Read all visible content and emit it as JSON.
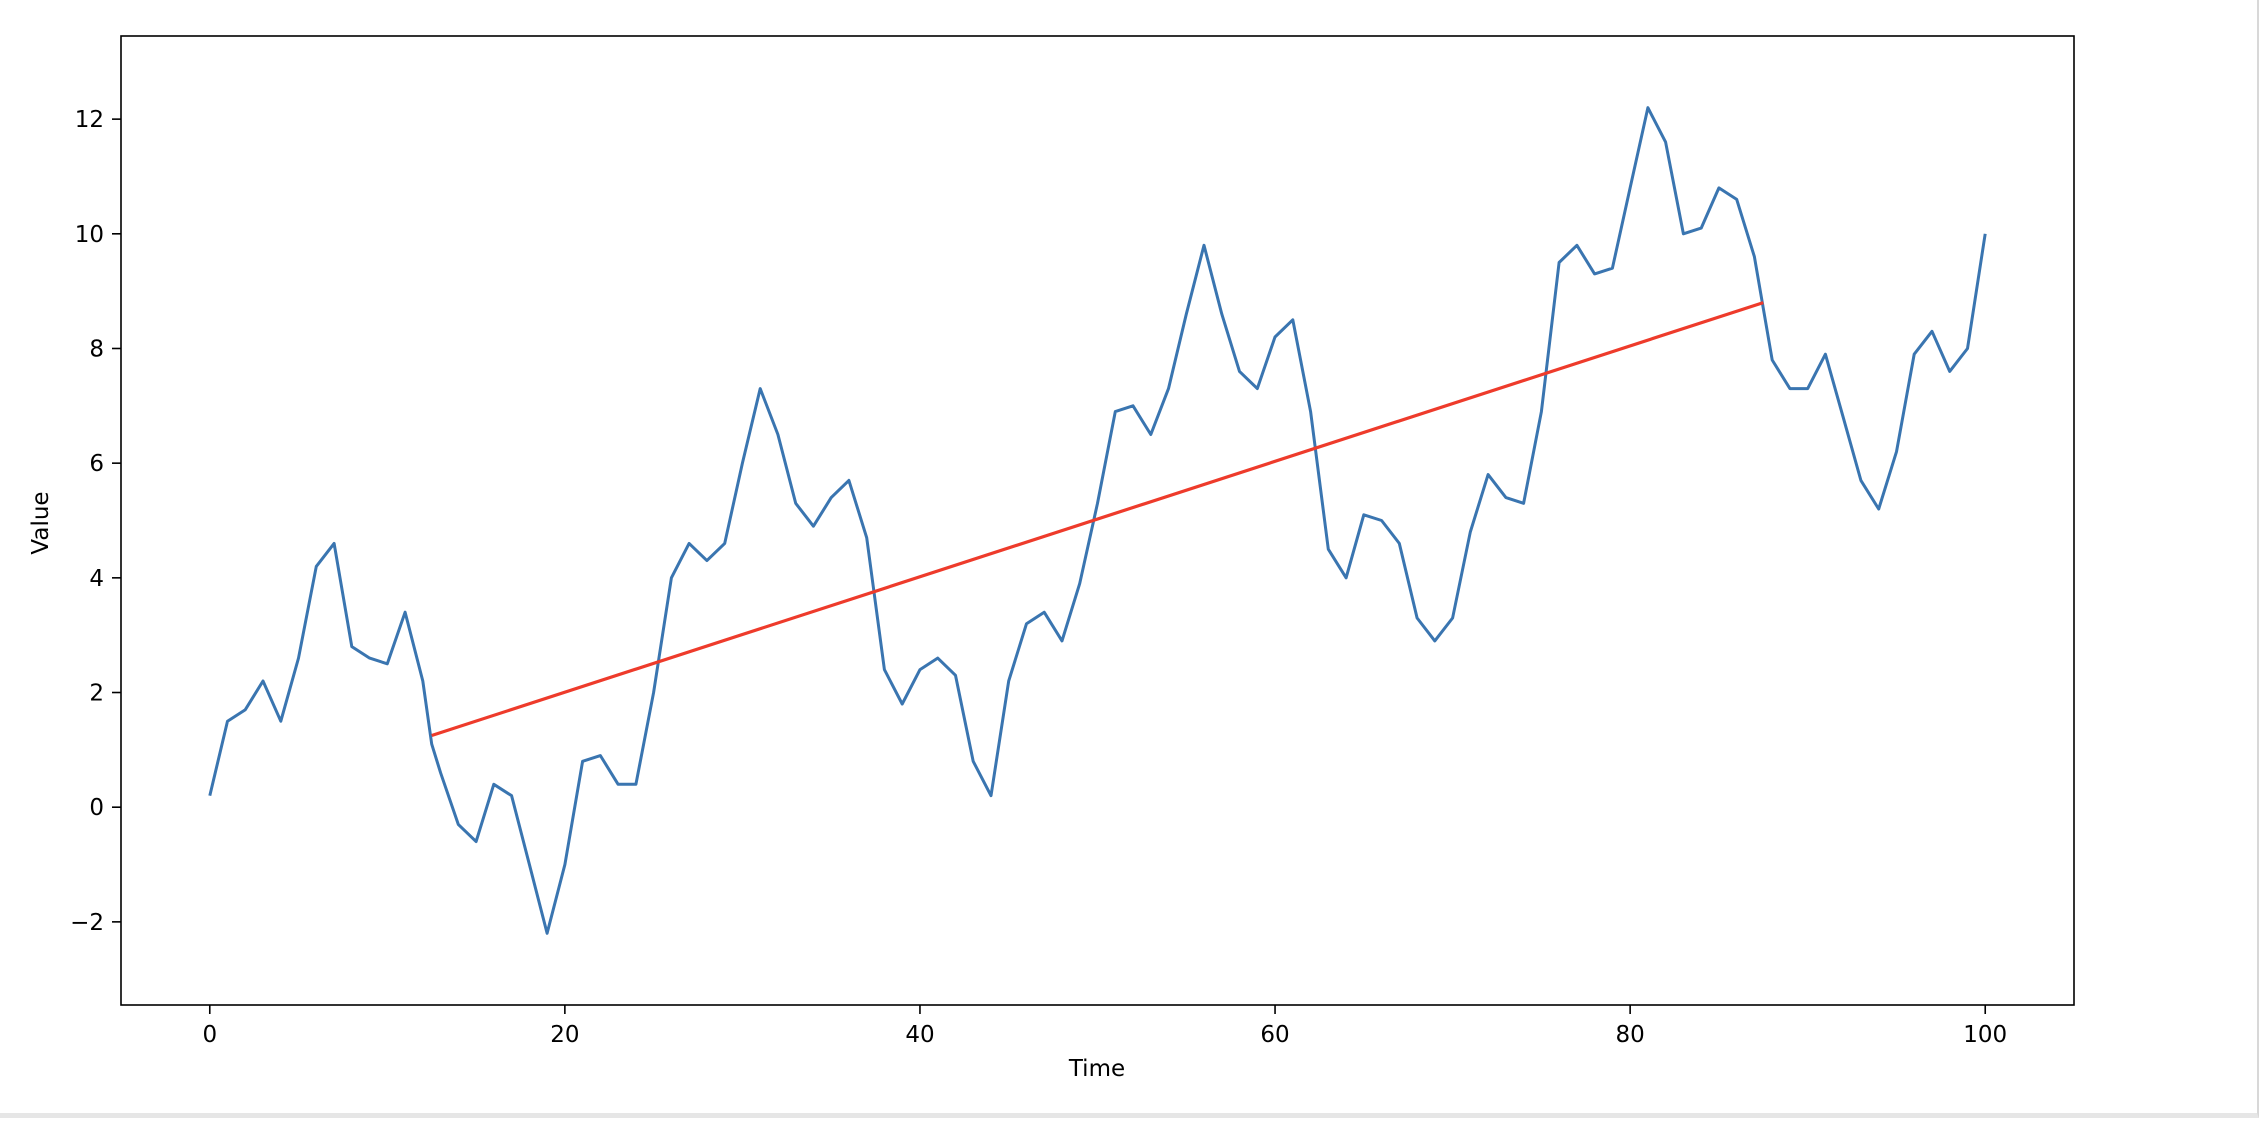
{
  "chart_data": {
    "type": "line",
    "xlabel": "Time",
    "ylabel": "Value",
    "xlim": [
      -5,
      105
    ],
    "ylim": [
      -3.45,
      13.45
    ],
    "xticks": [
      0,
      20,
      40,
      60,
      80,
      100
    ],
    "yticks": [
      -2,
      0,
      2,
      4,
      6,
      8,
      10,
      12
    ],
    "grid": false,
    "series": [
      {
        "color": "#3a75b0",
        "points": [
          [
            0,
            0.2
          ],
          [
            1,
            1.5
          ],
          [
            2,
            1.7
          ],
          [
            3,
            2.2
          ],
          [
            4,
            1.5
          ],
          [
            5,
            2.6
          ],
          [
            6,
            4.2
          ],
          [
            7,
            4.6
          ],
          [
            8,
            2.8
          ],
          [
            9,
            2.6
          ],
          [
            10,
            2.5
          ],
          [
            11,
            3.4
          ],
          [
            12,
            2.2
          ],
          [
            12.5,
            1.1
          ],
          [
            13,
            0.6
          ],
          [
            14,
            -0.3
          ],
          [
            15,
            -0.6
          ],
          [
            16,
            0.4
          ],
          [
            17,
            0.2
          ],
          [
            18,
            -1.0
          ],
          [
            19,
            -2.2
          ],
          [
            20,
            -1.0
          ],
          [
            21,
            0.8
          ],
          [
            22,
            0.9
          ],
          [
            23,
            0.4
          ],
          [
            24,
            0.4
          ],
          [
            25,
            2.0
          ],
          [
            26,
            4.0
          ],
          [
            27,
            4.6
          ],
          [
            28,
            4.3
          ],
          [
            29,
            4.6
          ],
          [
            30,
            6.0
          ],
          [
            31,
            7.3
          ],
          [
            32,
            6.5
          ],
          [
            33,
            5.3
          ],
          [
            34,
            4.9
          ],
          [
            35,
            5.4
          ],
          [
            36,
            5.7
          ],
          [
            37,
            4.7
          ],
          [
            38,
            2.4
          ],
          [
            39,
            1.8
          ],
          [
            40,
            2.4
          ],
          [
            41,
            2.6
          ],
          [
            42,
            2.3
          ],
          [
            43,
            0.8
          ],
          [
            44,
            0.2
          ],
          [
            45,
            2.2
          ],
          [
            46,
            3.2
          ],
          [
            47,
            3.4
          ],
          [
            48,
            2.9
          ],
          [
            49,
            3.9
          ],
          [
            50,
            5.3
          ],
          [
            51,
            6.9
          ],
          [
            52,
            7.0
          ],
          [
            53,
            6.5
          ],
          [
            54,
            7.3
          ],
          [
            55,
            8.6
          ],
          [
            56,
            9.8
          ],
          [
            57,
            8.6
          ],
          [
            58,
            7.6
          ],
          [
            59,
            7.3
          ],
          [
            60,
            8.2
          ],
          [
            61,
            8.5
          ],
          [
            62,
            6.9
          ],
          [
            63,
            4.5
          ],
          [
            64,
            4.0
          ],
          [
            65,
            5.1
          ],
          [
            66,
            5.0
          ],
          [
            67,
            4.6
          ],
          [
            68,
            3.3
          ],
          [
            69,
            2.9
          ],
          [
            70,
            3.3
          ],
          [
            71,
            4.8
          ],
          [
            72,
            5.8
          ],
          [
            73,
            5.4
          ],
          [
            74,
            5.3
          ],
          [
            75,
            6.9
          ],
          [
            76,
            9.5
          ],
          [
            77,
            9.8
          ],
          [
            78,
            9.3
          ],
          [
            79,
            9.4
          ],
          [
            80,
            10.8
          ],
          [
            81,
            12.2
          ],
          [
            82,
            11.6
          ],
          [
            83,
            10.0
          ],
          [
            84,
            10.1
          ],
          [
            85,
            10.8
          ],
          [
            86,
            10.6
          ],
          [
            87,
            9.6
          ],
          [
            88,
            7.8
          ],
          [
            89,
            7.3
          ],
          [
            90,
            7.3
          ],
          [
            91,
            7.9
          ],
          [
            92,
            6.8
          ],
          [
            93,
            5.7
          ],
          [
            94,
            5.2
          ],
          [
            95,
            6.2
          ],
          [
            96,
            7.9
          ],
          [
            97,
            8.3
          ],
          [
            98,
            7.6
          ],
          [
            99,
            8.0
          ],
          [
            100,
            10.0
          ]
        ]
      },
      {
        "color": "#ee3b2b",
        "points": [
          [
            12.5,
            1.25
          ],
          [
            87.5,
            8.8
          ]
        ]
      }
    ]
  }
}
